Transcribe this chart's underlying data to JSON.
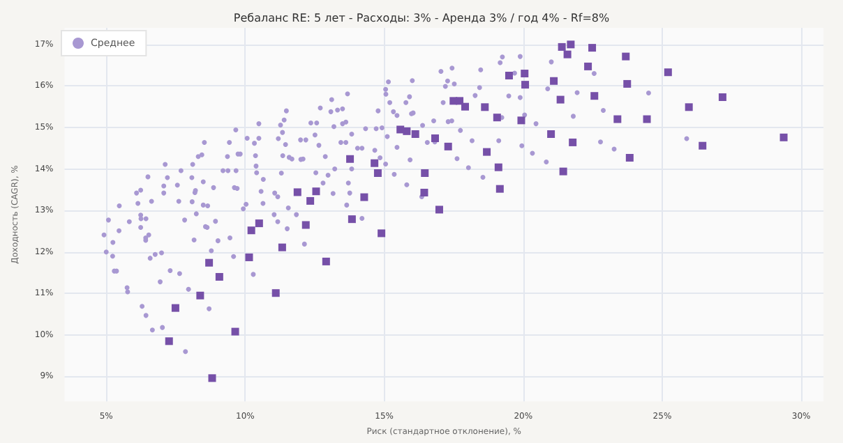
{
  "chart_data": {
    "type": "scatter",
    "title": "Ребаланс RE: 5 лет - Расходы: 3% - Аренда 3% / год 4% - Rf=8%",
    "xlabel": "Риск (стандартное отклонение), %",
    "ylabel": "Доходность (CAGR), %",
    "xlim": [
      3.5,
      30.8
    ],
    "ylim": [
      8.4,
      17.4
    ],
    "xticks": [
      {
        "value": 5,
        "label": "5%"
      },
      {
        "value": 10,
        "label": "10%"
      },
      {
        "value": 15,
        "label": "15%"
      },
      {
        "value": 20,
        "label": "20%"
      },
      {
        "value": 25,
        "label": "25%"
      },
      {
        "value": 30,
        "label": "30%"
      }
    ],
    "yticks": [
      {
        "value": 9,
        "label": "9%"
      },
      {
        "value": 10,
        "label": "10%"
      },
      {
        "value": 11,
        "label": "11%"
      },
      {
        "value": 12,
        "label": "12%"
      },
      {
        "value": 13,
        "label": "13%"
      },
      {
        "value": 14,
        "label": "14%"
      },
      {
        "value": 15,
        "label": "15%"
      },
      {
        "value": 16,
        "label": "16%"
      },
      {
        "value": 17,
        "label": "17%"
      }
    ],
    "grid": true,
    "legend": "top left",
    "series": [
      {
        "name": "Среднее",
        "color": "#a898d2",
        "marker": "circle",
        "x": [
          4.92,
          5.0,
          5.08,
          5.24,
          5.23,
          5.29,
          5.37,
          5.47,
          5.46,
          5.75,
          5.77,
          5.83,
          6.09,
          6.24,
          6.14,
          6.24,
          6.25,
          6.24,
          6.29,
          6.43,
          6.42,
          6.42,
          6.43,
          6.5,
          6.53,
          6.63,
          6.66,
          6.58,
          6.76,
          6.99,
          7.02,
          6.94,
          7.07,
          7.07,
          7.12,
          7.2,
          7.3,
          7.56,
          7.61,
          7.64,
          7.69,
          7.82,
          7.85,
          7.96,
          8.08,
          8.09,
          8.11,
          8.16,
          8.19,
          8.21,
          8.24,
          8.31,
          8.44,
          8.49,
          8.49,
          8.53,
          8.57,
          8.63,
          8.65,
          8.7,
          8.78,
          8.86,
          8.93,
          9.02,
          9.2,
          9.38,
          9.36,
          9.45,
          9.43,
          9.58,
          9.61,
          9.66,
          9.67,
          9.71,
          9.74,
          9.82,
          9.93,
          10.03,
          10.07,
          10.29,
          10.33,
          10.37,
          10.39,
          10.41,
          10.49,
          10.49,
          10.57,
          10.64,
          10.65,
          11.04,
          11.06,
          11.17,
          11.17,
          11.19,
          11.27,
          11.3,
          11.34,
          11.35,
          11.4,
          11.45,
          11.48,
          11.51,
          11.55,
          11.58,
          11.68,
          11.84,
          11.99,
          12.0,
          12.08,
          12.13,
          12.18,
          12.36,
          12.51,
          12.54,
          12.57,
          12.61,
          12.65,
          12.7,
          12.8,
          12.88,
          12.98,
          13.08,
          13.11,
          13.16,
          13.22,
          13.19,
          13.32,
          13.44,
          13.5,
          13.5,
          13.62,
          13.62,
          13.68,
          13.65,
          13.71,
          13.76,
          13.83,
          13.83,
          14.04,
          14.2,
          14.2,
          14.33,
          14.66,
          14.71,
          14.78,
          14.85,
          14.92,
          15.05,
          15.05,
          15.06,
          15.11,
          15.15,
          15.2,
          15.33,
          15.36,
          15.46,
          15.46,
          15.78,
          15.81,
          15.91,
          15.93,
          15.98,
          16.01,
          16.04,
          16.35,
          16.38,
          16.55,
          16.78,
          16.82,
          17.04,
          17.12,
          17.2,
          17.28,
          17.3,
          17.43,
          17.44,
          17.52,
          17.62,
          17.74,
          18.03,
          18.16,
          18.27,
          18.43,
          18.47,
          18.55,
          19.25,
          19.17,
          19.89,
          19.69,
          19.48,
          19.89,
          19.23,
          20.05,
          20.46,
          19.12,
          19.95,
          20.33,
          20.83,
          21.01,
          20.88,
          21.94,
          22.55,
          21.8,
          22.88,
          22.78,
          23.27,
          24.51,
          25.88
        ],
        "values": [
          12.41,
          12.0,
          12.77,
          12.23,
          11.9,
          11.54,
          11.54,
          13.11,
          12.51,
          11.14,
          11.04,
          12.73,
          13.42,
          13.49,
          13.17,
          12.89,
          12.8,
          12.59,
          10.69,
          12.8,
          12.34,
          12.28,
          10.47,
          13.81,
          12.41,
          13.22,
          10.12,
          11.85,
          11.94,
          11.98,
          10.18,
          11.28,
          13.59,
          13.42,
          14.11,
          13.79,
          11.55,
          13.61,
          13.22,
          11.48,
          13.96,
          12.77,
          9.6,
          11.1,
          13.79,
          13.21,
          14.11,
          12.29,
          13.43,
          13.48,
          12.92,
          14.3,
          14.34,
          13.69,
          13.13,
          14.64,
          12.61,
          12.59,
          13.11,
          10.63,
          12.03,
          13.55,
          12.74,
          12.27,
          13.96,
          13.96,
          14.3,
          12.34,
          14.64,
          11.89,
          13.55,
          14.94,
          13.96,
          13.53,
          14.36,
          14.36,
          13.04,
          13.15,
          14.74,
          11.46,
          14.62,
          14.32,
          14.07,
          13.91,
          15.09,
          14.74,
          13.46,
          13.17,
          13.75,
          12.9,
          13.42,
          13.33,
          12.73,
          14.73,
          15.06,
          13.9,
          14.88,
          14.32,
          15.18,
          14.59,
          15.4,
          12.56,
          13.06,
          14.28,
          14.24,
          12.9,
          14.7,
          14.23,
          14.24,
          12.19,
          14.7,
          15.11,
          14.82,
          13.91,
          15.11,
          null,
          14.57,
          15.47,
          13.66,
          14.3,
          13.85,
          15.38,
          15.67,
          13.41,
          14.0,
          15.02,
          15.42,
          14.64,
          15.09,
          15.45,
          14.64,
          15.13,
          15.81,
          13.13,
          13.66,
          13.42,
          14.84,
          14.0,
          14.5,
          14.5,
          12.81,
          14.97,
          14.45,
          14.97,
          15.4,
          14.27,
          14.99,
          14.12,
          15.92,
          15.8,
          14.78,
          16.1,
          15.6,
          15.38,
          13.87,
          14.52,
          15.29,
          15.6,
          13.62,
          15.74,
          14.22,
          15.33,
          16.13,
          15.35,
          13.33,
          15.05,
          14.64,
          15.16,
          14.65,
          16.35,
          15.6,
          15.99,
          16.12,
          15.14,
          15.16,
          16.43,
          16.05,
          14.25,
          14.93,
          14.03,
          14.68,
          15.77,
          15.96,
          16.39,
          13.8,
          16.7,
          16.56,
          16.71,
          16.31,
          15.76,
          15.72,
          15.24,
          15.3,
          15.09,
          14.68,
          14.56,
          14.38,
          14.17,
          16.58,
          15.93,
          15.84,
          16.3,
          15.27,
          15.41,
          14.65,
          14.48,
          15.83,
          14.73
        ]
      },
      {
        "color": "#7650a8",
        "marker": "square",
        "x": [
          21.39,
          21.71,
          21.59,
          22.48,
          23.69,
          22.33,
          25.21,
          19.49,
          20.05,
          21.1,
          20.07,
          23.74,
          21.34,
          22.56,
          27.17,
          18.62,
          25.96,
          19.06,
          19.93,
          23.39,
          24.45,
          21.0,
          21.78,
          26.45,
          29.37,
          18.69,
          23.83,
          19.11,
          21.44,
          19.16,
          17.49,
          17.71,
          17.91,
          15.58,
          15.81,
          16.12,
          16.83,
          17.3,
          13.77,
          14.65,
          14.77,
          16.46,
          11.88,
          12.55,
          12.34,
          14.28,
          16.44,
          16.98,
          13.84,
          12.18,
          10.5,
          10.22,
          14.9,
          10.14,
          11.33,
          12.91,
          11.1,
          9.64,
          8.7,
          9.07,
          8.38,
          7.49,
          7.26,
          8.81
        ],
        "values": [
          16.94,
          17.0,
          16.76,
          16.92,
          16.71,
          16.47,
          16.33,
          16.25,
          16.3,
          16.12,
          16.03,
          16.05,
          15.67,
          15.76,
          15.73,
          15.49,
          15.49,
          15.24,
          15.17,
          15.2,
          15.2,
          14.84,
          14.64,
          14.56,
          14.76,
          14.41,
          14.27,
          14.04,
          13.94,
          13.52,
          15.64,
          15.64,
          15.5,
          14.95,
          14.91,
          14.84,
          14.74,
          14.54,
          14.24,
          14.14,
          13.9,
          13.9,
          13.44,
          13.46,
          13.23,
          13.32,
          13.43,
          13.02,
          12.79,
          12.65,
          12.69,
          12.52,
          12.45,
          11.87,
          12.11,
          11.77,
          11.01,
          10.08,
          11.74,
          11.4,
          10.95,
          10.65,
          9.85,
          8.96
        ]
      }
    ]
  }
}
